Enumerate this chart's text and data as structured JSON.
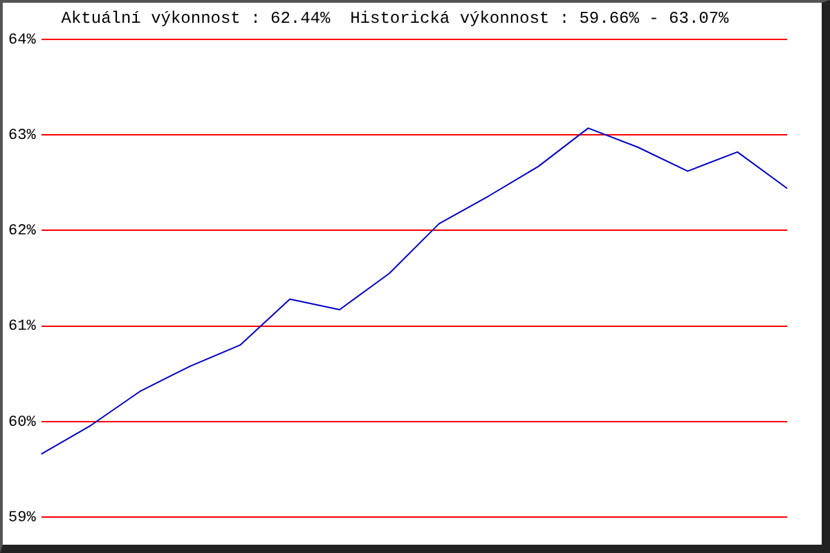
{
  "chart_data": {
    "type": "line",
    "title": "Aktuální výkonnost : 62.44%  Historická výkonnost : 59.66% - 63.07%",
    "categories": [
      null,
      null,
      null,
      null,
      null,
      null,
      null,
      null,
      null,
      null,
      null,
      null,
      null,
      null,
      null,
      null
    ],
    "series": [
      {
        "color": "#0000cc",
        "values": [
          59.66,
          59.96,
          60.32,
          60.58,
          60.8,
          61.28,
          61.17,
          61.55,
          62.07,
          62.36,
          62.67,
          63.07,
          62.87,
          62.62,
          62.82,
          62.44
        ]
      }
    ],
    "ylim": [
      59,
      64
    ],
    "yticks": [
      {
        "value": 59,
        "label": "59%"
      },
      {
        "value": 60,
        "label": "60%"
      },
      {
        "value": 61,
        "label": "61%"
      },
      {
        "value": 62,
        "label": "62%"
      },
      {
        "value": 63,
        "label": "63%"
      },
      {
        "value": 64,
        "label": "64%"
      }
    ],
    "grid": "y",
    "tick_labels": "y",
    "legend": false,
    "marker": "none",
    "line_style": "solid"
  }
}
